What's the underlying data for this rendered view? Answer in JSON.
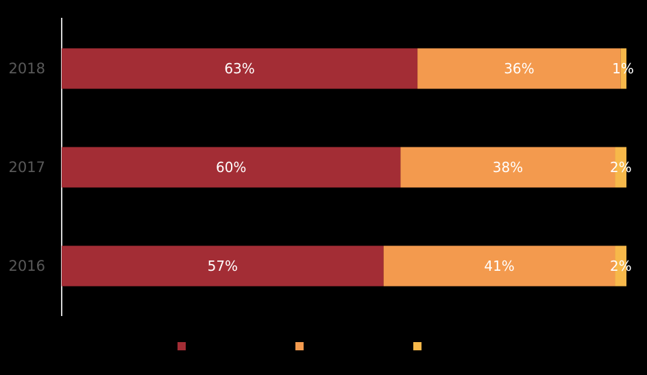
{
  "chart_data": {
    "type": "bar",
    "orientation": "horizontal",
    "stacked": true,
    "stack_mode": "percent",
    "title": "",
    "xlabel": "",
    "ylabel": "",
    "xlim": [
      0,
      100
    ],
    "grid": false,
    "legend_position": "bottom",
    "categories": [
      "2018",
      "2017",
      "2016"
    ],
    "series": [
      {
        "color": "#A32D35",
        "values": [
          63,
          60,
          57
        ],
        "labels": [
          "63%",
          "60%",
          "57%"
        ]
      },
      {
        "color": "#F39A4E",
        "values": [
          36,
          38,
          41
        ],
        "labels": [
          "36%",
          "38%",
          "41%"
        ]
      },
      {
        "color": "#F7B84A",
        "values": [
          1,
          2,
          2
        ],
        "labels": [
          "1%",
          "2%",
          "2%"
        ]
      }
    ]
  },
  "colors": {
    "background": "#000000",
    "axis_line": "#D9D9D9",
    "category_label": "#595959",
    "data_label": "#FFFFFF"
  }
}
